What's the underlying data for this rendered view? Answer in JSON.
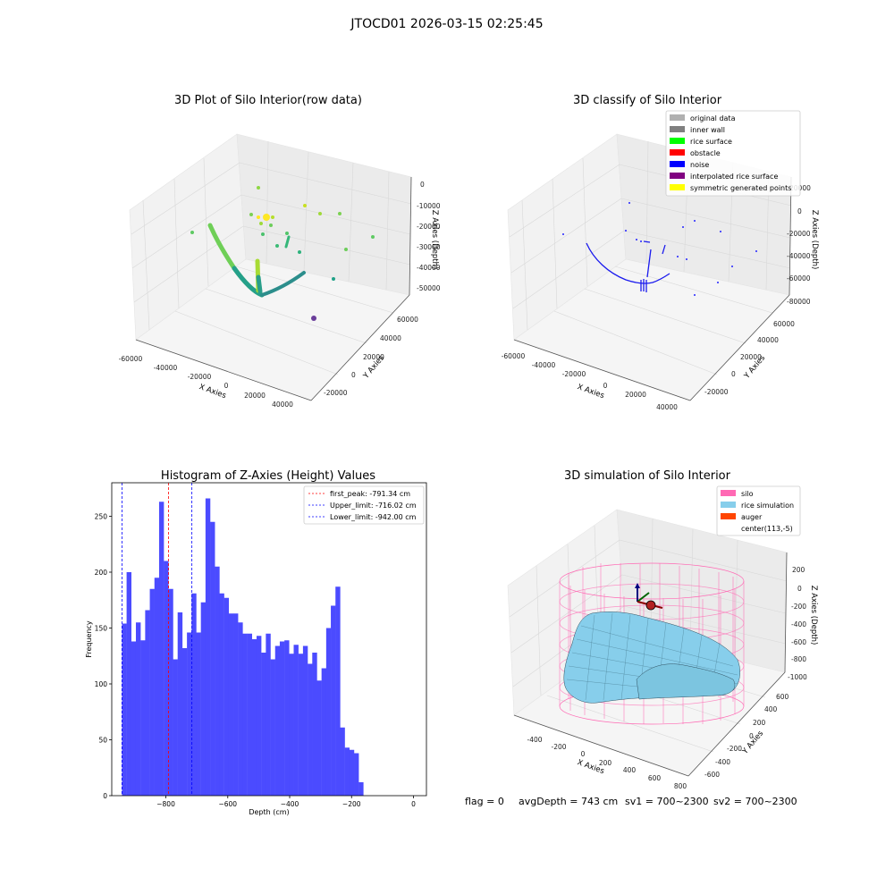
{
  "figure_title": "JTOCD01 2026-03-15 02:25:45",
  "footer": {
    "flag": "flag = 0",
    "avg": "avgDepth = 743 cm",
    "sv1": "sv1 = 700~2300",
    "sv2": "sv2 = 700~2300"
  },
  "colors": {
    "histogram_bar": "#4b4bff",
    "first_peak_line": "#ff0000",
    "limit_line": "#0000ff",
    "noise": "#0000ee",
    "silo_mesh": "#ff69b4",
    "rice_surface": "#87ceeb",
    "auger": "#ff4500"
  },
  "chart_data": [
    {
      "type": "scatter",
      "title": "3D Plot of Silo Interior(row data)",
      "xlabel": "X Axies",
      "ylabel": "Y Axies",
      "zlabel": "Z Axies (Depth)",
      "x_ticks": [
        "-60000",
        "-40000",
        "-20000",
        "0",
        "20000",
        "40000"
      ],
      "y_ticks": [
        "-20000",
        "0",
        "20000",
        "40000",
        "60000"
      ],
      "z_ticks": [
        "-50000",
        "-40000",
        "-30000",
        "-20000",
        "-10000",
        "0"
      ],
      "colormap": "viridis"
    },
    {
      "type": "scatter",
      "title": "3D classify of Silo Interior",
      "xlabel": "X Axies",
      "ylabel": "Y Axies",
      "zlabel": "Z Axies (Depth)",
      "x_ticks": [
        "-60000",
        "-40000",
        "-20000",
        "0",
        "20000",
        "40000"
      ],
      "y_ticks": [
        "-20000",
        "0",
        "20000",
        "40000",
        "60000"
      ],
      "z_ticks": [
        "-80000",
        "-60000",
        "-40000",
        "-20000",
        "0",
        "20000"
      ],
      "legend": [
        {
          "label": "original data",
          "color": "#b0b0b0"
        },
        {
          "label": "inner wall",
          "color": "#808080"
        },
        {
          "label": "rice surface",
          "color": "#00ff00"
        },
        {
          "label": "obstacle",
          "color": "#ff0000"
        },
        {
          "label": "noise",
          "color": "#0000ff"
        },
        {
          "label": "interpolated rice surface",
          "color": "#800080"
        },
        {
          "label": "symmetric generated points",
          "color": "#ffff00"
        }
      ],
      "legend_position": "top-right"
    },
    {
      "type": "bar",
      "title": "Histogram of Z-Axies (Height) Values",
      "xlabel": "Depth (cm)",
      "ylabel": "Frequency",
      "xlim": [
        -975,
        42
      ],
      "ylim": [
        0,
        280
      ],
      "x_ticks": [
        -800,
        -600,
        -400,
        -200,
        0
      ],
      "y_ticks": [
        0,
        50,
        100,
        150,
        200,
        250
      ],
      "bin_start": -942,
      "bin_width": 15,
      "values": [
        154,
        200,
        138,
        155,
        139,
        166,
        185,
        195,
        263,
        210,
        185,
        122,
        164,
        132,
        146,
        181,
        146,
        173,
        266,
        245,
        205,
        181,
        177,
        163,
        163,
        155,
        145,
        145,
        140,
        143,
        128,
        145,
        122,
        134,
        138,
        139,
        127,
        135,
        127,
        134,
        118,
        128,
        103,
        114,
        150,
        170,
        187,
        61,
        43,
        41,
        38,
        12
      ],
      "reference_lines": [
        {
          "label": "first_peak: -791.34 cm",
          "x": -791.34,
          "color": "#ff0000"
        },
        {
          "label": "Upper_limit: -716.02 cm",
          "x": -716.02,
          "color": "#0000ff"
        },
        {
          "label": "Lower_limit: -942.00 cm",
          "x": -942.0,
          "color": "#0000ff"
        }
      ],
      "legend_position": "top-right"
    },
    {
      "type": "surface",
      "title": "3D simulation of Silo Interior",
      "xlabel": "X Axies",
      "ylabel": "Y Axies",
      "zlabel": "Z Axies (Depth)",
      "x_ticks": [
        "-400",
        "-200",
        "0",
        "200",
        "400",
        "600",
        "800"
      ],
      "y_ticks": [
        "-600",
        "-400",
        "-200",
        "0",
        "200",
        "400",
        "600"
      ],
      "z_ticks": [
        "-1000",
        "-800",
        "-600",
        "-400",
        "-200",
        "0",
        "200"
      ],
      "legend": [
        {
          "label": "silo",
          "color": "#ff69b4"
        },
        {
          "label": "rice simulation",
          "color": "#87ceeb"
        },
        {
          "label": "auger",
          "color": "#ff4500"
        },
        {
          "label": "center(113,-5)",
          "color": "none"
        }
      ],
      "legend_position": "top-right"
    }
  ]
}
